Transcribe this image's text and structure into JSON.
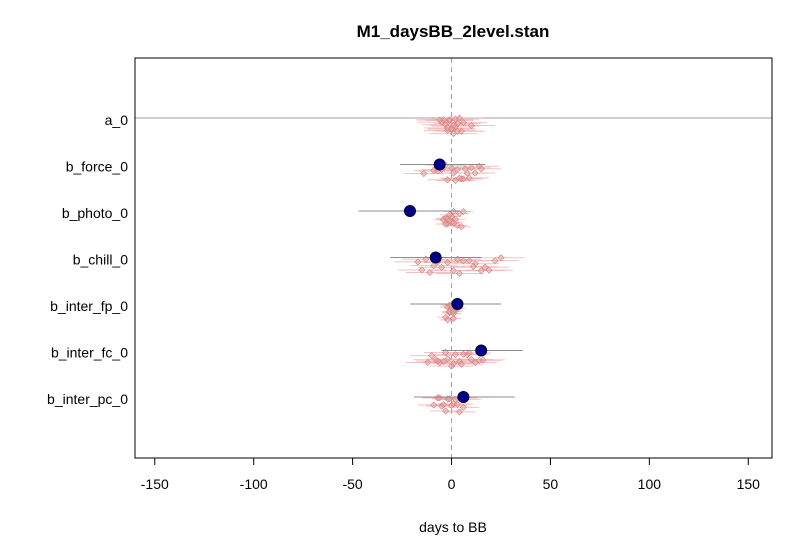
{
  "chart_data": {
    "type": "scatter",
    "title": "M1_daysBB_2level.stan",
    "xlabel": "days to BB",
    "ylabel": "",
    "xlim": [
      -160,
      162
    ],
    "x_ticks": [
      -150,
      -100,
      -50,
      0,
      50,
      100,
      150
    ],
    "x_tick_labels": [
      "-150",
      "-100",
      "-50",
      "0",
      "50",
      "100",
      "150"
    ],
    "zero_reference_line": true,
    "grid": false,
    "legend": "none",
    "colors": {
      "main_point": "#00008B",
      "main_interval": "#8c8c8c",
      "group_point": "#e8a0a0",
      "group_interval": "#f0b8b8",
      "reference_line": "#a0a0a0"
    },
    "parameters": [
      {
        "label": "a_0",
        "mean": null,
        "ci": null,
        "group_means": [
          0,
          2,
          -3,
          5,
          -1,
          3,
          -4,
          1,
          6,
          -2,
          4,
          -5,
          0,
          2,
          -1,
          3,
          -2,
          1,
          10,
          -6
        ],
        "group_ci_half_width": 12
      },
      {
        "label": "b_force_0",
        "mean": -6,
        "ci": [
          -26,
          17
        ],
        "group_means": [
          -14,
          -9,
          3,
          8,
          14,
          -3,
          5,
          10,
          -7,
          2,
          0,
          12,
          -2,
          6,
          15,
          1,
          9,
          -5,
          4,
          7
        ],
        "group_ci_half_width": 10
      },
      {
        "label": "b_photo_0",
        "mean": -21,
        "ci": [
          -47,
          4
        ],
        "group_means": [
          -3,
          0,
          3,
          6,
          -2,
          1,
          -4,
          -1,
          2,
          -3,
          0,
          5,
          -2,
          1,
          4,
          -1
        ],
        "group_ci_half_width": 5
      },
      {
        "label": "b_chill_0",
        "mean": -8,
        "ci": [
          -31,
          15
        ],
        "group_means": [
          -17,
          -11,
          -5,
          3,
          9,
          15,
          19,
          25,
          -13,
          -7,
          1,
          6,
          12,
          17,
          -9,
          -2,
          4,
          11,
          22,
          -15
        ],
        "group_ci_half_width": 12
      },
      {
        "label": "b_inter_fp_0",
        "mean": 3,
        "ci": [
          -21,
          25
        ],
        "group_means": [
          -3,
          -1,
          1,
          3,
          -2,
          0,
          2,
          -1,
          1,
          0,
          -2,
          2,
          -1,
          1
        ],
        "group_ci_half_width": 4
      },
      {
        "label": "b_inter_fc_0",
        "mean": 15,
        "ci": [
          -5,
          36
        ],
        "group_means": [
          -12,
          -8,
          -4,
          0,
          4,
          8,
          12,
          16,
          -10,
          -6,
          -2,
          2,
          6,
          10,
          14,
          -7,
          1,
          9,
          5,
          -3
        ],
        "group_ci_half_width": 11
      },
      {
        "label": "b_inter_pc_0",
        "mean": 6,
        "ci": [
          -19,
          32
        ],
        "group_means": [
          -9,
          -5,
          -2,
          1,
          4,
          7,
          -7,
          -3,
          0,
          3,
          6,
          -6,
          -1,
          2,
          5,
          -4
        ],
        "group_ci_half_width": 8
      }
    ]
  }
}
